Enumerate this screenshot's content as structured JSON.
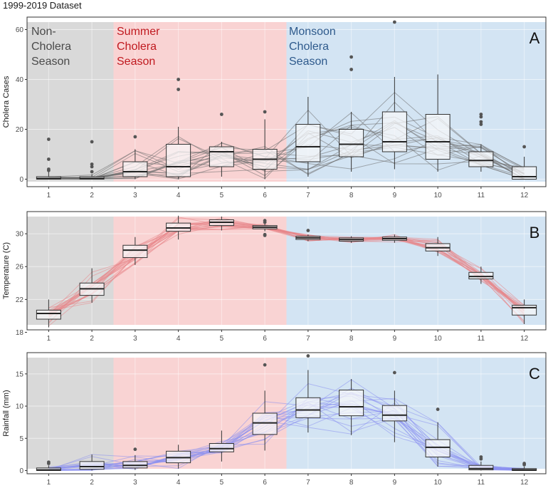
{
  "figure_title": "1999-2019 Dataset",
  "colors": {
    "non_cholera": "#d9d9d9",
    "summer": "#f9d3d3",
    "monsoon": "#d3e4f3",
    "season_non_text": "#4a4a4a",
    "season_summer_text": "#c0191f",
    "season_monsoon_text": "#2e5a8c",
    "line_a": "#6e6e6e",
    "line_b": "#e8878b",
    "line_c": "#8a8ff0",
    "box_fill": "#f6f6f8",
    "median": "#222222",
    "outlier": "#555555"
  },
  "chart_data": [
    {
      "id": "A",
      "type": "box",
      "panel_letter": "A",
      "title": "1999-2019 Dataset",
      "xlabel": "",
      "ylabel": "Cholera Cases",
      "ylim": [
        -3,
        65
      ],
      "yticks": [
        0,
        20,
        40,
        60
      ],
      "categories": [
        "1",
        "2",
        "3",
        "4",
        "5",
        "6",
        "7",
        "8",
        "9",
        "10",
        "11",
        "12"
      ],
      "season_labels": {
        "non": [
          "Non-",
          "Cholera",
          "Season"
        ],
        "summer": [
          "Summer",
          "Cholera",
          "Season"
        ],
        "monsoon": [
          "Monsoon",
          "Cholera",
          "Season"
        ]
      },
      "boxes": [
        {
          "month": 1,
          "low": 0,
          "q1": 0,
          "median": 0.3,
          "q3": 1,
          "high": 3,
          "outliers": [
            3.5,
            4,
            8,
            16
          ]
        },
        {
          "month": 2,
          "low": 0,
          "q1": 0,
          "median": 0.3,
          "q3": 1,
          "high": 2,
          "outliers": [
            3,
            5,
            6,
            15
          ]
        },
        {
          "month": 3,
          "low": 0,
          "q1": 1,
          "median": 3,
          "q3": 7,
          "high": 12,
          "outliers": [
            17
          ]
        },
        {
          "month": 4,
          "low": 0,
          "q1": 1,
          "median": 5,
          "q3": 14,
          "high": 21,
          "outliers": [
            36,
            40
          ]
        },
        {
          "month": 5,
          "low": 1,
          "q1": 5,
          "median": 11,
          "q3": 13,
          "high": 15,
          "outliers": [
            26
          ]
        },
        {
          "month": 6,
          "low": 0,
          "q1": 4,
          "median": 8,
          "q3": 12,
          "high": 24,
          "outliers": [
            27
          ]
        },
        {
          "month": 7,
          "low": 1,
          "q1": 7,
          "median": 13,
          "q3": 22,
          "high": 33,
          "outliers": []
        },
        {
          "month": 8,
          "low": 3,
          "q1": 9,
          "median": 14,
          "q3": 20,
          "high": 27,
          "outliers": [
            44,
            49
          ]
        },
        {
          "month": 9,
          "low": 4,
          "q1": 11,
          "median": 15,
          "q3": 27,
          "high": 41,
          "outliers": [
            63
          ]
        },
        {
          "month": 10,
          "low": 3,
          "q1": 8,
          "median": 15,
          "q3": 26,
          "high": 42,
          "outliers": []
        },
        {
          "month": 11,
          "low": 3,
          "q1": 5,
          "median": 7.5,
          "q3": 11,
          "high": 14,
          "outliers": [
            22,
            23,
            25,
            26
          ]
        },
        {
          "month": 12,
          "low": 0,
          "q1": 0,
          "median": 1,
          "q3": 5,
          "high": 9,
          "outliers": [
            13
          ]
        }
      ]
    },
    {
      "id": "B",
      "type": "box",
      "panel_letter": "B",
      "xlabel": "",
      "ylabel": "Temperature (C)",
      "ylim": [
        18.3,
        32.7
      ],
      "yticks": [
        18,
        22,
        26,
        30
      ],
      "categories": [
        "1",
        "2",
        "3",
        "4",
        "5",
        "6",
        "7",
        "8",
        "9",
        "10",
        "11",
        "12"
      ],
      "boxes": [
        {
          "month": 1,
          "low": 18.6,
          "q1": 19.6,
          "median": 20.3,
          "q3": 20.7,
          "high": 22.0,
          "outliers": []
        },
        {
          "month": 2,
          "low": 21.6,
          "q1": 22.5,
          "median": 23.3,
          "q3": 24.0,
          "high": 25.8,
          "outliers": []
        },
        {
          "month": 3,
          "low": 26.2,
          "q1": 27.1,
          "median": 28.0,
          "q3": 28.6,
          "high": 29.6,
          "outliers": []
        },
        {
          "month": 4,
          "low": 29.3,
          "q1": 30.3,
          "median": 30.7,
          "q3": 31.3,
          "high": 32.2,
          "outliers": []
        },
        {
          "month": 5,
          "low": 30.4,
          "q1": 31.0,
          "median": 31.4,
          "q3": 31.7,
          "high": 32.1,
          "outliers": []
        },
        {
          "month": 6,
          "low": 30.3,
          "q1": 30.6,
          "median": 30.8,
          "q3": 31.0,
          "high": 31.2,
          "outliers": [
            29.8,
            29.9,
            31.4,
            31.6
          ]
        },
        {
          "month": 7,
          "low": 29.1,
          "q1": 29.3,
          "median": 29.5,
          "q3": 29.7,
          "high": 29.9,
          "outliers": [
            30.4
          ]
        },
        {
          "month": 8,
          "low": 28.9,
          "q1": 29.1,
          "median": 29.3,
          "q3": 29.5,
          "high": 29.7,
          "outliers": []
        },
        {
          "month": 9,
          "low": 28.9,
          "q1": 29.2,
          "median": 29.4,
          "q3": 29.6,
          "high": 29.9,
          "outliers": []
        },
        {
          "month": 10,
          "low": 27.3,
          "q1": 27.9,
          "median": 28.3,
          "q3": 28.8,
          "high": 29.6,
          "outliers": []
        },
        {
          "month": 11,
          "low": 23.9,
          "q1": 24.5,
          "median": 24.8,
          "q3": 25.3,
          "high": 26.0,
          "outliers": []
        },
        {
          "month": 12,
          "low": 19.0,
          "q1": 20.1,
          "median": 21.0,
          "q3": 21.3,
          "high": 22.0,
          "outliers": []
        }
      ]
    },
    {
      "id": "C",
      "type": "box",
      "panel_letter": "C",
      "xlabel": "",
      "ylabel": "Rainfall (mm)",
      "ylim": [
        -0.5,
        18.3
      ],
      "yticks": [
        0,
        5,
        10,
        15
      ],
      "categories": [
        "1",
        "2",
        "3",
        "4",
        "5",
        "6",
        "7",
        "8",
        "9",
        "10",
        "11",
        "12"
      ],
      "boxes": [
        {
          "month": 1,
          "low": 0,
          "q1": 0,
          "median": 0.1,
          "q3": 0.4,
          "high": 0.8,
          "outliers": [
            1.1,
            1.3
          ]
        },
        {
          "month": 2,
          "low": 0,
          "q1": 0.2,
          "median": 0.6,
          "q3": 1.4,
          "high": 2.5,
          "outliers": []
        },
        {
          "month": 3,
          "low": 0.1,
          "q1": 0.4,
          "median": 0.8,
          "q3": 1.4,
          "high": 2.4,
          "outliers": [
            3.3
          ]
        },
        {
          "month": 4,
          "low": 0.3,
          "q1": 1.2,
          "median": 2.0,
          "q3": 3.0,
          "high": 4.0,
          "outliers": []
        },
        {
          "month": 5,
          "low": 1.4,
          "q1": 2.9,
          "median": 3.4,
          "q3": 4.2,
          "high": 6.2,
          "outliers": []
        },
        {
          "month": 6,
          "low": 3.1,
          "q1": 5.6,
          "median": 7.4,
          "q3": 8.9,
          "high": 12.4,
          "outliers": [
            16.4
          ]
        },
        {
          "month": 7,
          "low": 5.9,
          "q1": 8.2,
          "median": 9.4,
          "q3": 11.3,
          "high": 15.6,
          "outliers": [
            17.8
          ]
        },
        {
          "month": 8,
          "low": 5.5,
          "q1": 8.5,
          "median": 9.9,
          "q3": 12.5,
          "high": 14.2,
          "outliers": []
        },
        {
          "month": 9,
          "low": 4.4,
          "q1": 7.7,
          "median": 8.6,
          "q3": 10.1,
          "high": 12.4,
          "outliers": [
            15.2
          ]
        },
        {
          "month": 10,
          "low": 0.6,
          "q1": 2.1,
          "median": 3.6,
          "q3": 4.8,
          "high": 7.5,
          "outliers": [
            9.5
          ]
        },
        {
          "month": 11,
          "low": 0,
          "q1": 0.1,
          "median": 0.3,
          "q3": 0.8,
          "high": 1.4,
          "outliers": [
            1.8,
            2.1
          ]
        },
        {
          "month": 12,
          "low": 0,
          "q1": 0,
          "median": 0.1,
          "q3": 0.3,
          "high": 0.6,
          "outliers": [
            0.9,
            1.1
          ]
        }
      ]
    }
  ]
}
